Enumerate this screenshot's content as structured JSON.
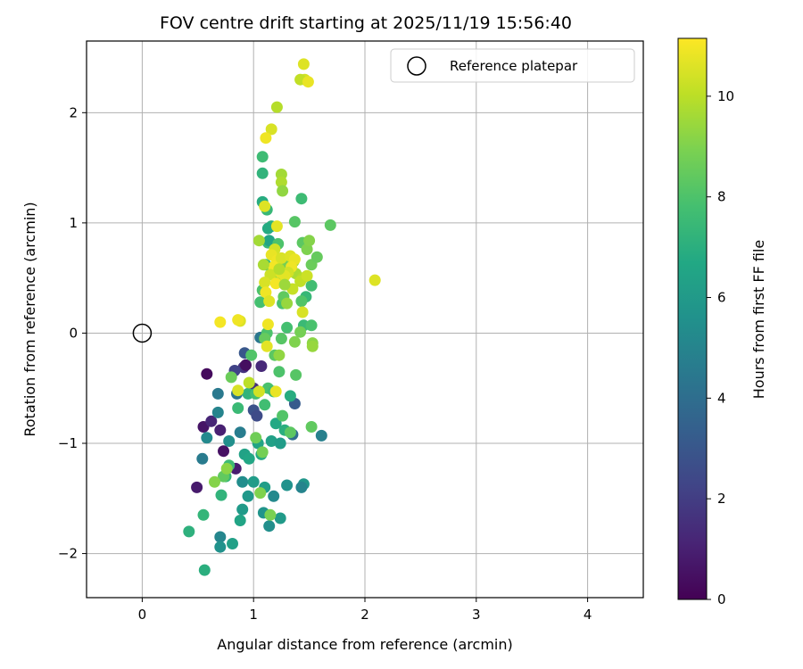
{
  "chart_data": {
    "type": "scatter",
    "title": "FOV centre drift starting at 2025/11/19 15:56:40",
    "xlabel": "Angular distance from reference (arcmin)",
    "ylabel": "Rotation from reference (arcmin)",
    "colorbar_label": "Hours from first FF file",
    "xlim": [
      -0.5,
      4.5
    ],
    "ylim": [
      -2.4,
      2.65
    ],
    "clim": [
      0,
      11.15
    ],
    "x_ticks": [
      0,
      1,
      2,
      3,
      4
    ],
    "y_ticks": [
      -2,
      -1,
      0,
      1,
      2
    ],
    "colorbar_ticks": [
      0,
      2,
      4,
      6,
      8,
      10
    ],
    "grid": true,
    "legend_position": "top-right",
    "legend_entries": [
      "Reference platepar"
    ],
    "reference_point": {
      "x": 0,
      "y": 0
    },
    "colormap": "viridis",
    "points": [
      [
        0.58,
        -0.37,
        0.3
      ],
      [
        0.55,
        -0.85,
        0.6
      ],
      [
        0.49,
        -1.4,
        0.8
      ],
      [
        0.73,
        -1.07,
        0.5
      ],
      [
        0.84,
        -1.23,
        0.9
      ],
      [
        0.62,
        -0.8,
        1.2
      ],
      [
        0.7,
        -0.88,
        1.0
      ],
      [
        0.91,
        -0.31,
        1.6
      ],
      [
        0.93,
        -0.29,
        0.4
      ],
      [
        1.07,
        -0.3,
        1.3
      ],
      [
        0.83,
        -0.34,
        2.2
      ],
      [
        1.0,
        -0.5,
        1.5
      ],
      [
        1.0,
        -0.7,
        2.8
      ],
      [
        1.03,
        -0.75,
        2.5
      ],
      [
        0.92,
        -0.18,
        3.0
      ],
      [
        0.54,
        -1.14,
        4.6
      ],
      [
        0.68,
        -0.55,
        4.5
      ],
      [
        0.68,
        -0.72,
        5.0
      ],
      [
        0.58,
        -0.95,
        5.2
      ],
      [
        0.78,
        -0.98,
        5.5
      ],
      [
        0.88,
        -0.9,
        4.7
      ],
      [
        0.85,
        -0.55,
        4.3
      ],
      [
        1.06,
        -0.04,
        4.4
      ],
      [
        1.37,
        -0.64,
        3.2
      ],
      [
        1.35,
        -0.92,
        4.0
      ],
      [
        1.61,
        -0.93,
        4.8
      ],
      [
        1.3,
        -1.38,
        5.6
      ],
      [
        1.45,
        -1.37,
        5.8
      ],
      [
        1.43,
        -1.4,
        5.0
      ],
      [
        1.18,
        -1.48,
        5.2
      ],
      [
        0.9,
        -1.35,
        5.4
      ],
      [
        0.7,
        -1.85,
        5.1
      ],
      [
        0.7,
        -1.94,
        5.6
      ],
      [
        0.81,
        -1.91,
        6.3
      ],
      [
        0.88,
        -1.7,
        6.5
      ],
      [
        0.9,
        -1.6,
        6.0
      ],
      [
        0.95,
        -1.48,
        5.9
      ],
      [
        1.0,
        -1.35,
        6.1
      ],
      [
        1.1,
        -1.4,
        6.2
      ],
      [
        1.14,
        -1.75,
        5.5
      ],
      [
        1.24,
        -1.68,
        6.0
      ],
      [
        1.09,
        -1.63,
        5.7
      ],
      [
        0.92,
        -1.1,
        6.4
      ],
      [
        0.96,
        -1.14,
        6.6
      ],
      [
        1.04,
        -1.0,
        6.5
      ],
      [
        1.07,
        -1.1,
        6.8
      ],
      [
        1.16,
        -0.98,
        6.3
      ],
      [
        1.2,
        -0.82,
        6.7
      ],
      [
        1.24,
        -1.0,
        6.1
      ],
      [
        1.33,
        -0.57,
        6.9
      ],
      [
        1.28,
        -0.88,
        7.0
      ],
      [
        0.42,
        -1.8,
        7.1
      ],
      [
        0.55,
        -1.65,
        7.3
      ],
      [
        0.56,
        -2.15,
        7.0
      ],
      [
        0.71,
        -1.47,
        7.2
      ],
      [
        0.75,
        -1.3,
        7.4
      ],
      [
        0.78,
        -1.2,
        7.6
      ],
      [
        0.86,
        -0.68,
        7.5
      ],
      [
        0.95,
        -0.55,
        7.2
      ],
      [
        1.02,
        -0.55,
        7.8
      ],
      [
        1.1,
        -0.65,
        7.7
      ],
      [
        1.13,
        -0.5,
        7.9
      ],
      [
        1.18,
        -0.53,
        7.6
      ],
      [
        1.23,
        -0.35,
        8.0
      ],
      [
        1.26,
        -0.75,
        8.1
      ],
      [
        1.33,
        -0.9,
        8.3
      ],
      [
        1.38,
        -0.38,
        8.2
      ],
      [
        1.52,
        -0.85,
        8.4
      ],
      [
        1.45,
        0.07,
        7.5
      ],
      [
        1.52,
        0.07,
        7.9
      ],
      [
        1.3,
        0.05,
        7.8
      ],
      [
        1.12,
        0.0,
        8.0
      ],
      [
        1.25,
        -0.05,
        8.2
      ],
      [
        1.1,
        -0.05,
        8.5
      ],
      [
        1.19,
        -0.2,
        8.3
      ],
      [
        0.98,
        -0.2,
        8.1
      ],
      [
        0.73,
        -1.3,
        8.4
      ],
      [
        0.8,
        -0.4,
        8.6
      ],
      [
        1.02,
        -0.95,
        8.7
      ],
      [
        1.08,
        -1.08,
        8.8
      ],
      [
        1.15,
        -1.65,
        8.9
      ],
      [
        1.06,
        -1.45,
        9.0
      ],
      [
        0.65,
        -1.35,
        9.1
      ],
      [
        0.76,
        -1.23,
        9.2
      ],
      [
        1.06,
        0.28,
        7.8
      ],
      [
        1.08,
        0.39,
        8.0
      ],
      [
        1.11,
        0.62,
        7.6
      ],
      [
        1.13,
        0.82,
        7.4
      ],
      [
        1.16,
        0.97,
        7.1
      ],
      [
        1.13,
        0.95,
        6.8
      ],
      [
        1.14,
        0.84,
        6.5
      ],
      [
        1.22,
        0.81,
        8.0
      ],
      [
        1.26,
        0.27,
        7.9
      ],
      [
        1.27,
        0.33,
        8.4
      ],
      [
        1.31,
        0.67,
        8.0
      ],
      [
        1.37,
        1.01,
        8.2
      ],
      [
        1.43,
        1.22,
        7.6
      ],
      [
        1.44,
        0.82,
        8.3
      ],
      [
        1.52,
        0.62,
        8.6
      ],
      [
        1.57,
        0.69,
        8.5
      ],
      [
        1.52,
        0.43,
        7.7
      ],
      [
        1.47,
        0.33,
        7.4
      ],
      [
        1.43,
        0.29,
        8.1
      ],
      [
        1.29,
        0.62,
        8.8
      ],
      [
        1.69,
        0.98,
        8.3
      ],
      [
        1.08,
        1.6,
        7.6
      ],
      [
        1.08,
        1.45,
        7.2
      ],
      [
        1.08,
        1.19,
        6.9
      ],
      [
        1.12,
        1.12,
        7.4
      ],
      [
        1.42,
        0.01,
        8.8
      ],
      [
        1.53,
        -0.09,
        9.2
      ],
      [
        1.53,
        -0.12,
        9.4
      ],
      [
        1.37,
        -0.08,
        9.0
      ],
      [
        1.23,
        -0.2,
        9.3
      ],
      [
        1.3,
        0.27,
        9.4
      ],
      [
        1.22,
        0.52,
        9.2
      ],
      [
        1.36,
        0.65,
        9.5
      ],
      [
        1.48,
        0.76,
        9.0
      ],
      [
        1.5,
        0.84,
        9.1
      ],
      [
        1.38,
        0.54,
        9.7
      ],
      [
        1.44,
        0.5,
        9.9
      ],
      [
        1.25,
        1.44,
        9.6
      ],
      [
        1.25,
        1.37,
        9.8
      ],
      [
        1.26,
        1.29,
        9.3
      ],
      [
        1.21,
        2.05,
        9.9
      ],
      [
        1.46,
        2.3,
        10.4
      ],
      [
        1.42,
        2.3,
        10.1
      ],
      [
        1.45,
        2.44,
        10.6
      ],
      [
        1.49,
        2.28,
        10.8
      ],
      [
        1.16,
        1.85,
        10.5
      ],
      [
        1.11,
        1.77,
        10.9
      ],
      [
        1.1,
        1.15,
        10.6
      ],
      [
        1.21,
        0.97,
        10.7
      ],
      [
        1.19,
        0.76,
        10.4
      ],
      [
        1.16,
        0.71,
        10.8
      ],
      [
        1.21,
        0.66,
        10.9
      ],
      [
        1.18,
        0.6,
        11.0
      ],
      [
        1.24,
        0.55,
        10.7
      ],
      [
        1.15,
        0.53,
        10.3
      ],
      [
        1.1,
        0.46,
        10.5
      ],
      [
        1.11,
        0.37,
        10.9
      ],
      [
        1.2,
        0.45,
        11.0
      ],
      [
        1.25,
        0.68,
        10.5
      ],
      [
        1.33,
        0.7,
        10.6
      ],
      [
        1.37,
        0.67,
        10.8
      ],
      [
        1.34,
        0.6,
        10.9
      ],
      [
        1.31,
        0.55,
        10.4
      ],
      [
        1.28,
        0.52,
        10.7
      ],
      [
        1.35,
        0.4,
        10.2
      ],
      [
        1.42,
        0.47,
        10.1
      ],
      [
        1.48,
        0.52,
        10.3
      ],
      [
        1.44,
        0.19,
        10.5
      ],
      [
        1.14,
        0.29,
        10.6
      ],
      [
        1.13,
        0.08,
        10.9
      ],
      [
        1.12,
        -0.12,
        10.7
      ],
      [
        1.2,
        -0.53,
        10.8
      ],
      [
        1.05,
        -0.53,
        10.4
      ],
      [
        0.96,
        -0.45,
        10.0
      ],
      [
        0.86,
        -0.52,
        10.5
      ],
      [
        0.88,
        0.11,
        10.6
      ],
      [
        0.86,
        0.12,
        10.9
      ],
      [
        0.7,
        0.1,
        11.0
      ],
      [
        2.09,
        0.48,
        10.6
      ],
      [
        1.23,
        0.58,
        9.9
      ],
      [
        1.28,
        0.44,
        9.5
      ],
      [
        1.09,
        0.62,
        9.7
      ],
      [
        1.05,
        0.84,
        9.6
      ]
    ]
  }
}
